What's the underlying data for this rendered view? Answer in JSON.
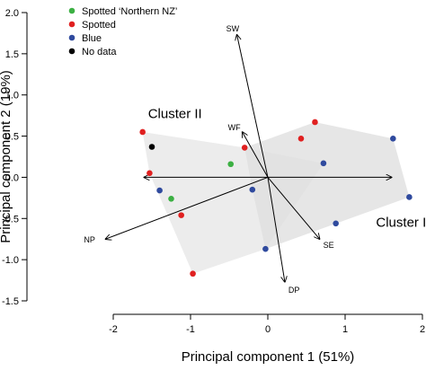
{
  "chart_data": {
    "type": "scatter",
    "xlabel": "Principal component 1 (51%)",
    "ylabel": "Principal component 2 (19%)",
    "xlim": [
      -2,
      2
    ],
    "ylim": [
      -1.5,
      2
    ],
    "x_ticks": [
      "-2",
      "-1",
      "0",
      "1",
      "2"
    ],
    "y_ticks": [
      "-1.5",
      "-1.0",
      "-0.5",
      "0.0",
      "0.5",
      "1.0",
      "1.5",
      "2.0"
    ],
    "grid": false,
    "legend_placement": "top-left",
    "series": [
      {
        "name": "Spotted ‘Northern NZ’",
        "color": "#3cb043",
        "points": [
          [
            -1.25,
            -0.26
          ],
          [
            -0.48,
            0.16
          ]
        ]
      },
      {
        "name": "Spotted",
        "color": "#e02020",
        "points": [
          [
            -1.62,
            0.55
          ],
          [
            -1.53,
            0.05
          ],
          [
            -1.12,
            -0.46
          ],
          [
            -0.97,
            -1.17
          ],
          [
            -0.3,
            0.36
          ],
          [
            0.43,
            0.47
          ],
          [
            0.61,
            0.67
          ]
        ]
      },
      {
        "name": "Blue",
        "color": "#2f4a9e",
        "points": [
          [
            -1.4,
            -0.16
          ],
          [
            -0.2,
            -0.15
          ],
          [
            -0.03,
            -0.87
          ],
          [
            0.72,
            0.17
          ],
          [
            0.88,
            -0.56
          ],
          [
            1.62,
            0.47
          ],
          [
            1.83,
            -0.24
          ]
        ]
      },
      {
        "name": "No data",
        "color": "#000000",
        "points": [
          [
            -1.5,
            0.37
          ]
        ]
      }
    ],
    "vectors": [
      {
        "label": "SW",
        "x": -0.4,
        "y": 1.73
      },
      {
        "label": "WF",
        "x": -0.33,
        "y": 0.55
      },
      {
        "label": "NP",
        "x": -2.1,
        "y": -0.75
      },
      {
        "label": "SE",
        "x": 0.67,
        "y": -0.75
      },
      {
        "label": "DP",
        "x": 0.22,
        "y": -1.27
      }
    ],
    "annotations": [
      {
        "text": "Cluster II",
        "x": -1.55,
        "y": 0.72
      },
      {
        "text": "Cluster I",
        "x": 1.4,
        "y": -0.6
      }
    ],
    "clusters": [
      {
        "label": "Cluster II",
        "color": "#e5e5e5",
        "points": [
          [
            -1.62,
            0.55
          ],
          [
            -0.3,
            0.36
          ],
          [
            0.72,
            0.17
          ],
          [
            -0.03,
            -0.87
          ],
          [
            -0.97,
            -1.17
          ],
          [
            -1.53,
            0.05
          ]
        ]
      },
      {
        "label": "Cluster I",
        "color": "#e0e0e0",
        "points": [
          [
            -0.3,
            0.36
          ],
          [
            0.61,
            0.67
          ],
          [
            1.62,
            0.47
          ],
          [
            1.83,
            -0.24
          ],
          [
            -0.03,
            -0.87
          ],
          [
            -0.2,
            -0.15
          ]
        ]
      }
    ]
  }
}
